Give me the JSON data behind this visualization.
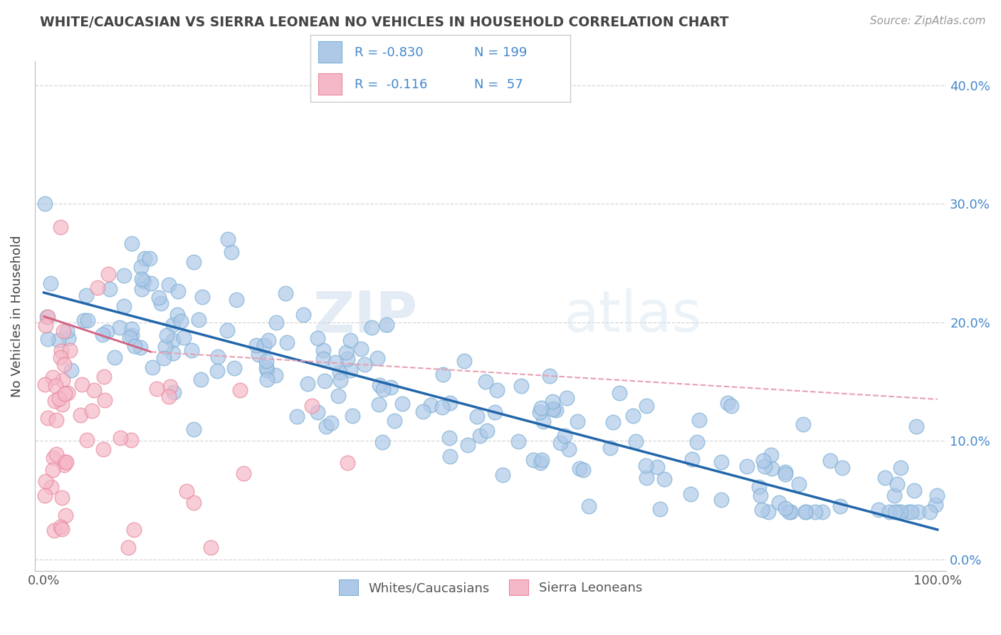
{
  "title": "WHITE/CAUCASIAN VS SIERRA LEONEAN NO VEHICLES IN HOUSEHOLD CORRELATION CHART",
  "source_text": "Source: ZipAtlas.com",
  "ylabel": "No Vehicles in Household",
  "xlim": [
    0,
    100
  ],
  "ylim": [
    0,
    40
  ],
  "xtick_vals": [
    0,
    20,
    40,
    60,
    80,
    100
  ],
  "xticklabels": [
    "0.0%",
    "",
    "",
    "",
    "",
    "100.0%"
  ],
  "ytick_vals": [
    0,
    10,
    20,
    30,
    40
  ],
  "yticklabels_right": [
    "0.0%",
    "10.0%",
    "20.0%",
    "30.0%",
    "40.0%"
  ],
  "blue_color": "#aec9e8",
  "blue_edge": "#7bafd4",
  "pink_color": "#f5b8c8",
  "pink_edge": "#e8889a",
  "line_blue_color": "#2266aa",
  "line_pink_solid": "#d46080",
  "line_pink_dash": "#e8a0b0",
  "text_blue": "#4488cc",
  "watermark_color": "#d8e4f0",
  "grid_color": "#cccccc",
  "background": "#ffffff",
  "title_color": "#444444",
  "ylabel_color": "#444444",
  "blue_line_x0": 0,
  "blue_line_y0": 22.5,
  "blue_line_x1": 100,
  "blue_line_y1": 2.5,
  "pink_line_solid_x0": 0,
  "pink_line_solid_y0": 20.5,
  "pink_line_solid_x1": 12,
  "pink_line_solid_y1": 17.5,
  "pink_line_dash_x0": 12,
  "pink_line_dash_y0": 17.5,
  "pink_line_dash_x1": 100,
  "pink_line_dash_y1": 13.5
}
